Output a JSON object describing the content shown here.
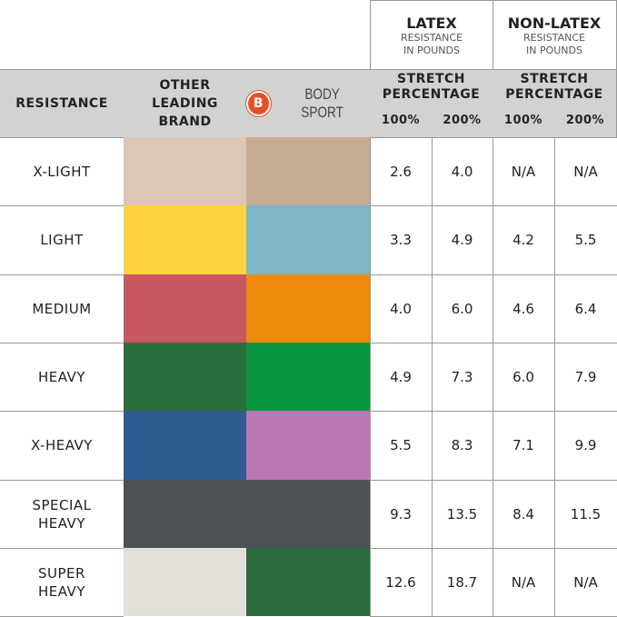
{
  "header": {
    "latex": {
      "title": "LATEX",
      "sub1": "RESISTANCE",
      "sub2": "IN POUNDS"
    },
    "nonlatex": {
      "title": "NON-LATEX",
      "sub1": "RESISTANCE",
      "sub2": "IN POUNDS"
    },
    "resistance": "RESISTANCE",
    "other": [
      "OTHER",
      "LEADING",
      "BRAND"
    ],
    "brand": {
      "letter": "B",
      "name": "BODY SPORT",
      "accent": "#e5502a"
    },
    "stretch": [
      "STRETCH",
      "PERCENTAGE"
    ],
    "pct": [
      "100%",
      "200%",
      "100%",
      "200%"
    ]
  },
  "rows": [
    {
      "label": [
        "X-LIGHT"
      ],
      "other": "#dcc6b4",
      "bodysport": "#c6ab95",
      "values": [
        "2.6",
        "4.0",
        "N/A",
        "N/A"
      ]
    },
    {
      "label": [
        "LIGHT"
      ],
      "other": "#fcd23e",
      "bodysport": "#80b4c7",
      "values": [
        "3.3",
        "4.9",
        "4.2",
        "5.5"
      ]
    },
    {
      "label": [
        "MEDIUM"
      ],
      "other": "#c8575f",
      "bodysport": "#ec8b0c",
      "values": [
        "4.0",
        "6.0",
        "4.6",
        "6.4"
      ]
    },
    {
      "label": [
        "HEAVY"
      ],
      "other": "#2b6e3f",
      "bodysport": "#07963f",
      "values": [
        "4.9",
        "7.3",
        "6.0",
        "7.9"
      ]
    },
    {
      "label": [
        "X-HEAVY"
      ],
      "other": "#2e5c93",
      "bodysport": "#b977b3",
      "values": [
        "5.5",
        "8.3",
        "7.1",
        "9.9"
      ]
    },
    {
      "label": [
        "SPECIAL",
        "HEAVY"
      ],
      "other": "#4b5155",
      "bodysport": "#4b5155",
      "values": [
        "9.3",
        "13.5",
        "8.4",
        "11.5"
      ]
    },
    {
      "label": [
        "SUPER",
        "HEAVY"
      ],
      "other": "#e2dfd9",
      "bodysport": "#2b6a3d",
      "values": [
        "12.6",
        "18.7",
        "N/A",
        "N/A"
      ]
    }
  ]
}
